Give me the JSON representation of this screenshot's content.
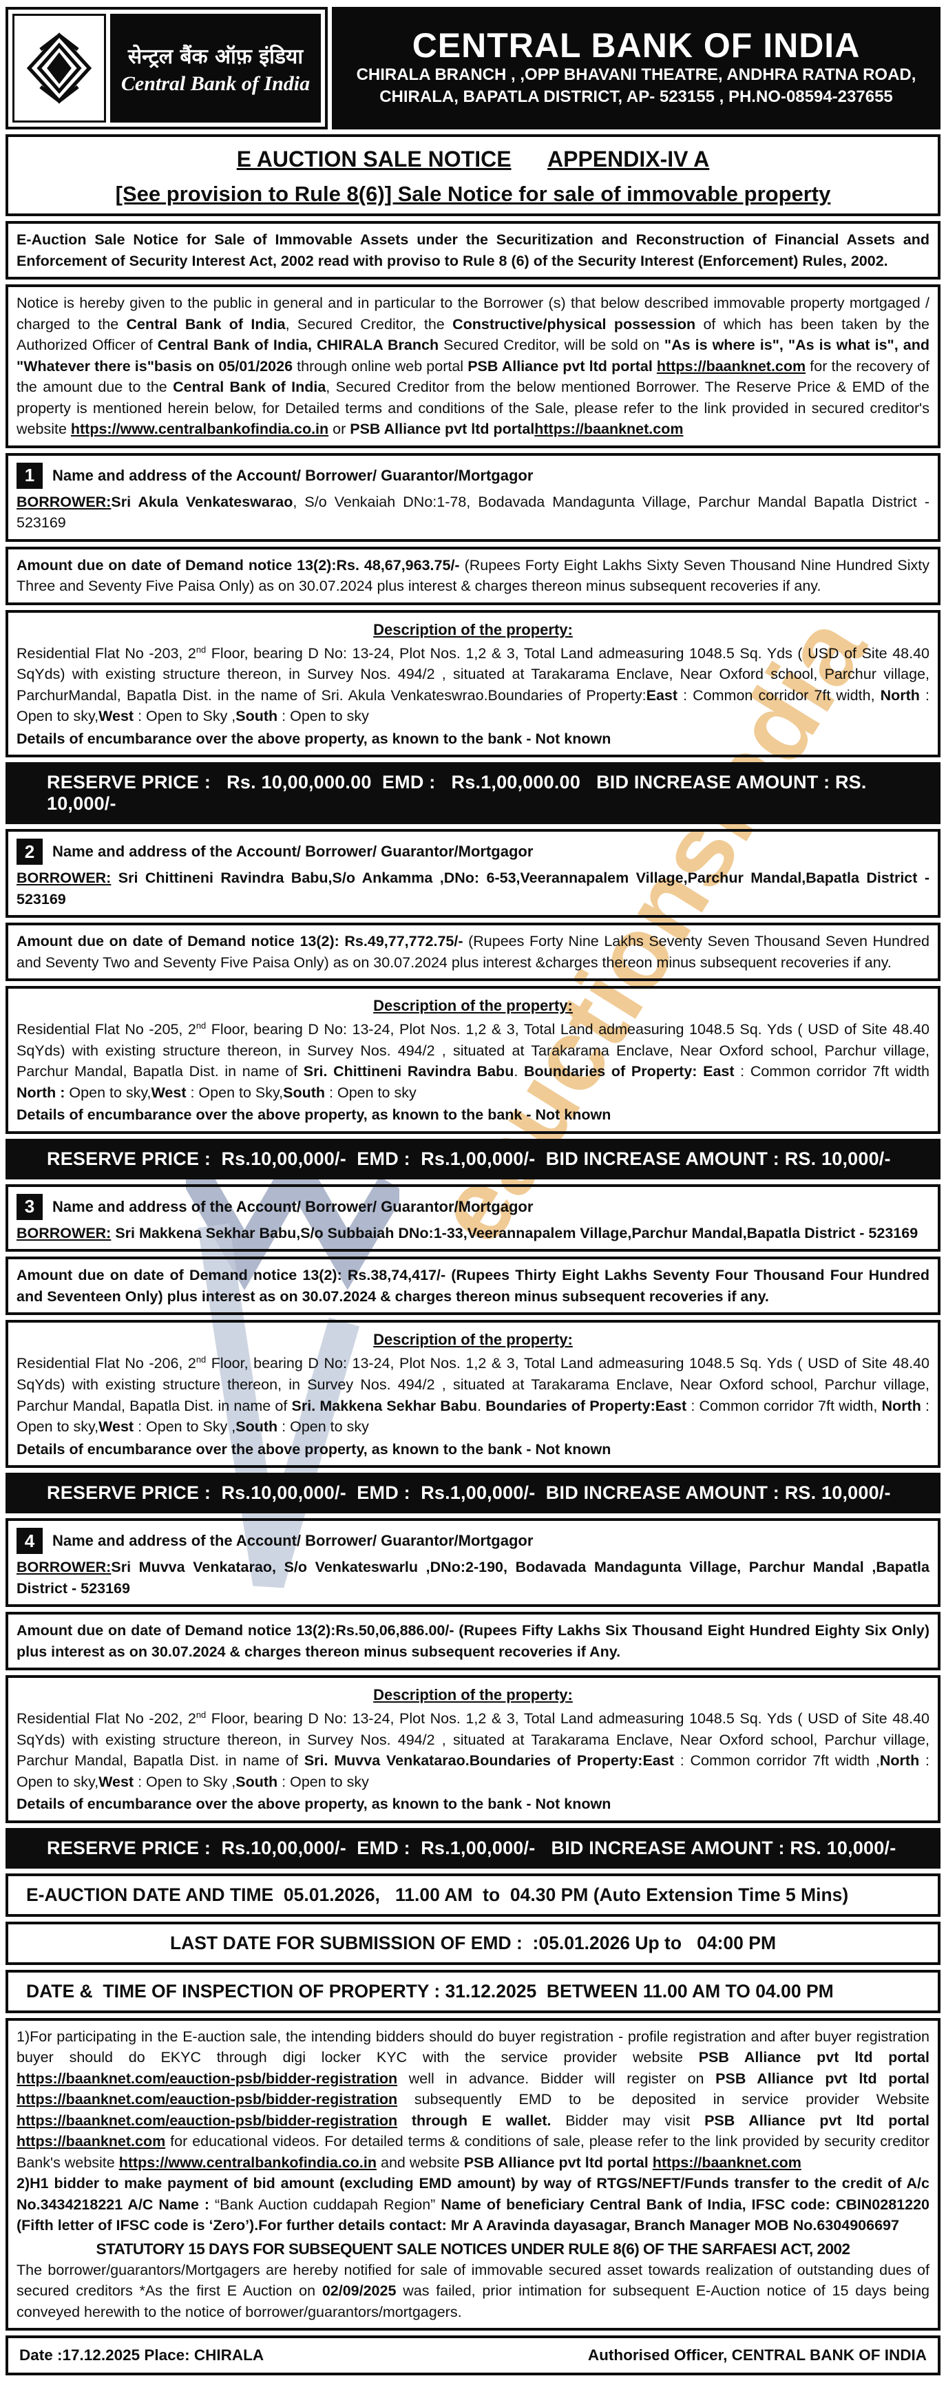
{
  "header": {
    "logo_hindi": "सेन्ट्रल बैंक ऑफ़ इंडिया",
    "logo_english": "Central Bank of India",
    "bank_name": "CENTRAL BANK OF INDIA",
    "branch_line1": "CHIRALA BRANCH , ,OPP BHAVANI THEATRE, ANDHRA RATNA ROAD,",
    "branch_line2": "CHIRALA, BAPATLA DISTRICT, AP- 523155 , PH.NO-08594-237655"
  },
  "title": {
    "main": "E AUCTION SALE NOTICE",
    "appendix": "APPENDIX-IV A",
    "subtitle": "[See provision to Rule 8(6)] Sale Notice for sale of immovable property"
  },
  "intro": "E-Auction Sale Notice for Sale of Immovable Assets under the Securitization and Reconstruction of Financial Assets and Enforcement of Security Interest Act, 2002 read with proviso to Rule 8 (6) of the Security Interest (Enforcement) Rules, 2002.",
  "notice_segments": [
    {
      "t": "Notice is hereby given to the public in general and in particular to the Borrower (s) that below described immovable property mortgaged / charged to the "
    },
    {
      "t": "Central Bank of India",
      "b": true
    },
    {
      "t": ", Secured Creditor, the "
    },
    {
      "t": "Constructive/physical  possession",
      "b": true
    },
    {
      "t": " of which has been taken by the Authorized Officer of "
    },
    {
      "t": "Central Bank of India, CHIRALA Branch",
      "b": true
    },
    {
      "t": " Secured Creditor, will be sold on "
    },
    {
      "t": "\"As is where is\", \"As is what is\", and \"Whatever there is\"basis on 05/01/2026 ",
      "b": true
    },
    {
      "t": "through online web portal "
    },
    {
      "t": "PSB Alliance pvt ltd portal ",
      "b": true
    },
    {
      "t": "https://baanknet.com",
      "b": true,
      "u": true
    },
    {
      "t": " for the recovery of the amount due to the "
    },
    {
      "t": "Central Bank of India",
      "b": true
    },
    {
      "t": ", Secured Creditor from the below mentioned Borrower. The Reserve Price & EMD of the property is mentioned herein below, for Detailed terms and conditions of the Sale, please refer to the link provided in secured creditor's website "
    },
    {
      "t": "https://www.centralbankofindia.co.in",
      "b": true,
      "u": true
    },
    {
      "t": " or "
    },
    {
      "t": "PSB Alliance pvt ltd portal",
      "b": true
    },
    {
      "t": "https://baanknet.com",
      "b": true,
      "u": true
    }
  ],
  "sections": [
    {
      "num": "1",
      "heading": "Name and address of the Account/ Borrower/ Guarantor/Mortgagor",
      "borrower_segments": [
        {
          "t": "BORROWER:",
          "b": true,
          "u": true
        },
        {
          "t": "Sri Akula Venkateswarao",
          "b": true
        },
        {
          "t": ", S/o Venkaiah DNo:1-78, Bodavada Mandagunta Village, Parchur Mandal Bapatla District - 523169"
        }
      ],
      "amount_segments": [
        {
          "t": "Amount due on date of Demand notice 13(2):Rs. 48,67,963.75/- ",
          "b": true
        },
        {
          "t": "(Rupees Forty Eight Lakhs Sixty Seven Thousand Nine Hundred Sixty Three and Seventy Five Paisa Only) as on 30.07.2024 plus interest & charges thereon minus subsequent recoveries if any."
        }
      ],
      "desc_heading": "Description of the property:",
      "desc_segments": [
        {
          "t": "Residential Flat No -203, 2"
        },
        {
          "t": "nd",
          "sup": true
        },
        {
          "t": " Floor, bearing D No: 13-24, Plot Nos. 1,2 & 3, Total Land admeasuring 1048.5 Sq. Yds ( USD of Site  48.40 SqYds) with existing structure thereon, in Survey Nos. 494/2 , situated at Tarakarama Enclave, Near Oxford school, Parchur village, ParchurMandal, Bapatla Dist. in the name of Sri. Akula Venkateswrao.Boundaries of Property:"
        },
        {
          "t": "East",
          "b": true
        },
        {
          "t": " : Common corridor 7ft width, "
        },
        {
          "t": "North",
          "b": true
        },
        {
          "t": " : Open to sky,"
        },
        {
          "t": "West",
          "b": true
        },
        {
          "t": " : Open to Sky ,"
        },
        {
          "t": "South",
          "b": true
        },
        {
          "t": " : Open to sky"
        }
      ],
      "encumbrance": "Details of encumbarance over the above property, as known to the bank - Not known",
      "reserve_bar": "RESERVE PRICE :   Rs. 10,00,000.00  EMD :   Rs.1,00,000.00   BID INCREASE AMOUNT : RS. 10,000/-"
    },
    {
      "num": "2",
      "heading": "Name and address of the Account/ Borrower/ Guarantor/Mortgagor",
      "borrower_segments": [
        {
          "t": "BORROWER:",
          "b": true,
          "u": true
        },
        {
          "t": " Sri Chittineni Ravindra Babu,S/o Ankamma ,DNo: 6-53,Veerannapalem Village,Parchur Mandal,Bapatla District - 523169",
          "b": true
        }
      ],
      "amount_segments": [
        {
          "t": "Amount due on date of Demand notice 13(2): Rs.49,77,772.75/- ",
          "b": true
        },
        {
          "t": "(Rupees Forty Nine Lakhs Seventy Seven Thousand Seven Hundred and Seventy Two and Seventy Five Paisa Only) as on 30.07.2024 plus interest &charges thereon minus subsequent recoveries if any."
        }
      ],
      "desc_heading": "Description of the property:",
      "desc_segments": [
        {
          "t": "Residential Flat No -205, 2"
        },
        {
          "t": "nd",
          "sup": true
        },
        {
          "t": "  Floor, bearing D No: 13-24, Plot Nos. 1,2 & 3, Total Land admeasuring 1048.5 Sq. Yds ( USD of Site  48.40 SqYds) with existing structure thereon, in Survey Nos. 494/2 , situated at Tarakarama Enclave, Near Oxford school, Parchur village, Parchur Mandal, Bapatla Dist. in name of "
        },
        {
          "t": "Sri. Chittineni Ravindra Babu",
          "b": true
        },
        {
          "t": ". "
        },
        {
          "t": "Boundaries of Property: East",
          "b": true
        },
        {
          "t": " : Common corridor 7ft width "
        },
        {
          "t": "North :",
          "b": true
        },
        {
          "t": " Open to sky,"
        },
        {
          "t": "West",
          "b": true
        },
        {
          "t": " : Open to Sky,"
        },
        {
          "t": "South",
          "b": true
        },
        {
          "t": " : Open to sky"
        }
      ],
      "encumbrance": "Details of encumbarance over the above property, as known to the bank - Not known",
      "reserve_bar": "RESERVE PRICE :  Rs.10,00,000/-  EMD :  Rs.1,00,000/-  BID INCREASE AMOUNT : RS. 10,000/-"
    },
    {
      "num": "3",
      "heading": "Name and address of the Account/ Borrower/ Guarantor/Mortgagor",
      "borrower_segments": [
        {
          "t": "BORROWER:",
          "b": true,
          "u": true
        },
        {
          "t": " Sri Makkena Sekhar Babu,S/o Subbaiah DNo:1-33,Veerannapalem Village,Parchur Mandal,Bapatla District - 523169",
          "b": true
        }
      ],
      "amount_segments": [
        {
          "t": "Amount due on date of Demand notice 13(2): Rs.38,74,417/- (Rupees Thirty Eight Lakhs Seventy Four Thousand Four Hundred and Seventeen Only) plus interest as on 30.07.2024 & charges thereon minus subsequent recoveries if any.",
          "b": true
        }
      ],
      "desc_heading": "Description of the property:",
      "desc_segments": [
        {
          "t": "Residential Flat No -206, 2"
        },
        {
          "t": "nd",
          "sup": true
        },
        {
          "t": " Floor, bearing D No: 13-24, Plot Nos. 1,2 & 3, Total Land admeasuring 1048.5 Sq. Yds ( USD of Site  48.40 SqYds) with existing structure thereon, in Survey Nos. 494/2 , situated at Tarakarama Enclave, Near Oxford school, Parchur village, Parchur Mandal, Bapatla Dist. in name of "
        },
        {
          "t": "Sri. Makkena Sekhar Babu",
          "b": true
        },
        {
          "t": ".  "
        },
        {
          "t": "Boundaries of Property:East",
          "b": true
        },
        {
          "t": " : Common corridor 7ft width, "
        },
        {
          "t": "North",
          "b": true
        },
        {
          "t": " : Open to sky,"
        },
        {
          "t": "West",
          "b": true
        },
        {
          "t": " : Open to Sky ,"
        },
        {
          "t": "South",
          "b": true
        },
        {
          "t": " : Open to sky"
        }
      ],
      "encumbrance": "Details of encumbarance over the above property, as known to the bank - Not known",
      "reserve_bar": "RESERVE PRICE :  Rs.10,00,000/-  EMD :  Rs.1,00,000/-  BID INCREASE AMOUNT : RS. 10,000/-"
    },
    {
      "num": "4",
      "heading": "Name and address of the Account/ Borrower/ Guarantor/Mortgagor",
      "borrower_segments": [
        {
          "t": "BORROWER:",
          "b": true,
          "u": true
        },
        {
          "t": "Sri Muvva Venkatarao, S/o Venkateswarlu ,DNo:2-190, Bodavada Mandagunta Village, Parchur Mandal ,Bapatla District - 523169",
          "b": true
        }
      ],
      "amount_segments": [
        {
          "t": "Amount due on date of Demand notice 13(2):Rs.50,06,886.00/- (Rupees Fifty Lakhs Six Thousand Eight Hundred Eighty Six Only) plus interest as on 30.07.2024 &  charges thereon minus subsequent recoveries if Any.",
          "b": true
        }
      ],
      "desc_heading": "Description of the property:",
      "desc_segments": [
        {
          "t": "Residential Flat No -202, 2"
        },
        {
          "t": "nd",
          "sup": true
        },
        {
          "t": "  Floor, bearing D No: 13-24, Plot Nos. 1,2 & 3, Total Land admeasuring 1048.5 Sq. Yds ( USD of Site  48.40 SqYds) with existing structure thereon, in Survey Nos. 494/2 , situated at Tarakarama Enclave, Near Oxford school, Parchur village, Parchur Mandal, Bapatla Dist. in name of "
        },
        {
          "t": "Sri. Muvva Venkatarao.Boundaries of Property:East",
          "b": true
        },
        {
          "t": " : Common corridor 7ft width ,"
        },
        {
          "t": "North",
          "b": true
        },
        {
          "t": " : Open to sky,"
        },
        {
          "t": "West",
          "b": true
        },
        {
          "t": " : Open to Sky ,"
        },
        {
          "t": "South",
          "b": true
        },
        {
          "t": " : Open to sky"
        }
      ],
      "encumbrance": "Details of encumbarance over the above property, as known to the bank - Not known",
      "reserve_bar": "RESERVE PRICE :  Rs.10,00,000/-  EMD :  Rs.1,00,000/-   BID INCREASE AMOUNT : RS. 10,000/-"
    }
  ],
  "auction": {
    "row1": "E-AUCTION DATE AND TIME  05.01.2026,   11.00 AM  to  04.30 PM (Auto Extension Time 5 Mins)",
    "row2": "LAST DATE FOR SUBMISSION OF EMD :  :05.01.2026 Up to   04:00 PM",
    "row3": "DATE &  TIME OF INSPECTION OF PROPERTY : 31.12.2025  BETWEEN 11.00 AM TO 04.00 PM"
  },
  "terms": {
    "para1_segments": [
      {
        "t": "1)"
      },
      {
        "t": "For participating in the E-auction sale, the intending bidders should do buyer registration - profile registration and after buyer registration buyer should do EKYC through digi locker KYC with the service provider website "
      },
      {
        "t": "PSB Alliance pvt ltd portal ",
        "b": true
      },
      {
        "t": "https://baanknet.com/eauction-psb/bidder-registration",
        "b": true,
        "u": true
      },
      {
        "t": " well in advance. Bidder will register on "
      },
      {
        "t": "PSB Alliance pvt ltd portal",
        "b": true
      },
      {
        "t": " "
      },
      {
        "t": "https://baanknet.com/eauction-psb/bidder-registration",
        "b": true,
        "u": true
      },
      {
        "t": " subsequently EMD to be deposited in service provider Website "
      },
      {
        "t": "https://baanknet.com/eauction-psb/bidder-registration",
        "b": true,
        "u": true
      },
      {
        "t": " "
      },
      {
        "t": "through E wallet.",
        "b": true
      },
      {
        "t": " Bidder may visit "
      },
      {
        "t": "PSB Alliance pvt ltd portal",
        "b": true
      },
      {
        "t": " "
      },
      {
        "t": "https://baanknet.com",
        "b": true,
        "u": true
      },
      {
        "t": " for educational videos. For detailed terms & conditions of sale, please refer to the link provided by security creditor Bank's website "
      },
      {
        "t": "https://www.centralbankofindia.co.in",
        "b": true,
        "u": true
      },
      {
        "t": " and website "
      },
      {
        "t": "PSB Alliance pvt ltd portal ",
        "b": true
      },
      {
        "t": "https://baanknet.com",
        "b": true,
        "u": true
      }
    ],
    "para2_segments": [
      {
        "t": "2)H1 bidder to make payment of bid amount (excluding EMD amount) by way of RTGS/NEFT/Funds transfer to the credit of ",
        "b": true
      },
      {
        "t": "A/c No.3434218221 A/C Name : ",
        "b": true
      },
      {
        "t": "“Bank Auction cuddapah Region”"
      },
      {
        "t": " Name of beneficiary Central Bank of India, IFSC code: ",
        "b": true
      },
      {
        "t": "CBIN0281220 (Fifth letter of IFSC code is ‘Zero’).For further details contact: Mr A Aravinda dayasagar, Branch Manager MOB No.6304906697",
        "b": true
      }
    ],
    "statutory": "STATUTORY 15 DAYS FOR SUBSEQUENT SALE NOTICES UNDER RULE 8(6) OF THE SARFAESI ACT, 2002",
    "closing_segments": [
      {
        "t": "The borrower/guarantors/Mortgagers are hereby notified for sale of immovable secured asset towards realization of outstanding dues of secured creditors *As the first E Auction on "
      },
      {
        "t": "02/09/2025",
        "b": true
      },
      {
        "t": " was failed, prior intimation for subsequent E-Auction notice of 15 days being conveyed herewith to the notice of borrower/guarantors/mortgagers."
      }
    ]
  },
  "footer": {
    "date_place": "Date :17.12.2025  Place: CHIRALA",
    "officer": "Authorised Officer, CENTRAL BANK OF INDIA"
  },
  "watermark": {
    "text": "eauctionsindia",
    "text_color": "#e4a03e",
    "logo_color": "#7d8cac"
  }
}
